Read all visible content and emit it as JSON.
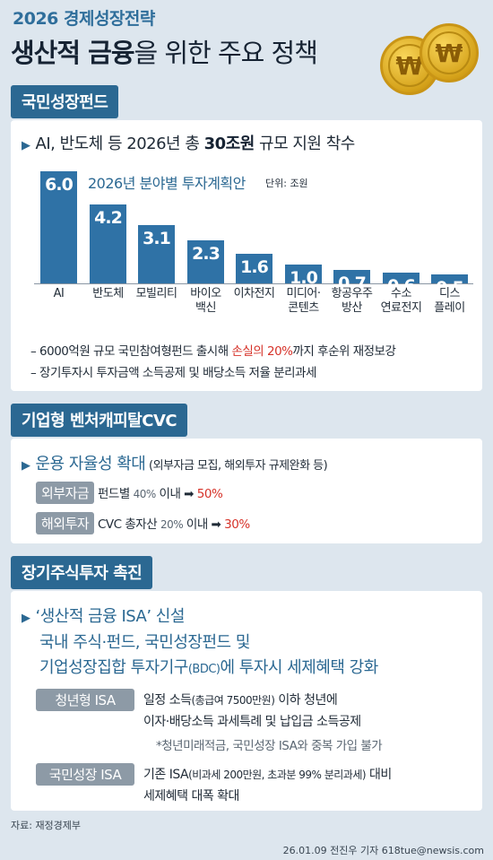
{
  "header": {
    "subtitle": "2026 경제성장전략",
    "title_bold": "생산적 금융",
    "title_rest": "을 위한 주요 정책"
  },
  "coins": {
    "symbol": "₩"
  },
  "section1": {
    "tag": "국민성장펀드",
    "headline_pre": "AI, 반도체 등 2026년 총 ",
    "headline_bold": "30조원",
    "headline_post": " 규모 지원 착수",
    "bullets": [
      {
        "pre": "– 6000억원 규모 국민참여형펀드 출시해 ",
        "red": "손실의 20%",
        "post": "까지 후순위 재정보강"
      },
      {
        "pre": "– 장기투자시 투자금액 소득공제 및 배당소득 저율 분리과세",
        "red": "",
        "post": ""
      }
    ]
  },
  "chart_data": {
    "type": "bar",
    "title": "2026년 분야별 투자계획안",
    "unit": "단위: 조원",
    "categories": [
      "AI",
      "반도체",
      "모빌리티",
      "바이오\n백신",
      "이차전지",
      "미디어·\n콘텐츠",
      "항공우주\n방산",
      "수소\n연료전지",
      "디스\n플레이"
    ],
    "values": [
      6.0,
      4.2,
      3.1,
      2.3,
      1.6,
      1.0,
      0.7,
      0.6,
      0.5
    ],
    "value_labels": [
      "6.0",
      "4.2",
      "3.1",
      "2.3",
      "1.6",
      "1.0",
      "0.7",
      "0.6",
      "0.5"
    ],
    "ylim": [
      0,
      6.0
    ],
    "bar_color": "#2f72a6"
  },
  "section2": {
    "tag": "기업형 벤처캐피탈CVC",
    "headline_main": "운용 자율성 확대",
    "headline_note": " (외부자금 모집, 해외투자 규제완화 등)",
    "rows": [
      {
        "chip": "외부자금",
        "text": "펀드별 ",
        "from": "40%",
        "mid": " 이내 ",
        "arrow": "➡",
        "to": "50%"
      },
      {
        "chip": "해외투자",
        "text": "CVC 총자산 ",
        "from": "20%",
        "mid": " 이내 ",
        "arrow": "➡",
        "to": "30%"
      }
    ]
  },
  "section3": {
    "tag": "장기주식투자 촉진",
    "headline": "‘생산적 금융 ISA’ 신설",
    "line2": "국내 주식·펀드, 국민성장펀드 및",
    "line3_pre": "기업성장집합 투자기구",
    "line3_small": "(BDC)",
    "line3_post": "에 투자시 세제혜택 강화",
    "items": [
      {
        "chip": "청년형 ISA",
        "l1_pre": "일정 소득",
        "l1_small": "(총급여 7500만원)",
        "l1_post": " 이하 청년에",
        "l2": "이자·배당소득 과세특례 및 납입금 소득공제",
        "note": "*청년미래적금, 국민성장 ISA와 중복 가입 불가"
      },
      {
        "chip": "국민성장 ISA",
        "l1_pre": "기존 ISA",
        "l1_small": "(비과세 200만원, 초과분 99% 분리과세)",
        "l1_post": " 대비",
        "l2": "세제혜택 대폭 확대"
      }
    ]
  },
  "footer": {
    "source": "자료: 재정경제부",
    "credit": "26.01.09 전진우 기자 618tue@newsis.com"
  },
  "colors": {
    "accent": "#2b6892",
    "highlight": "#d6332a",
    "background": "#dde6ee"
  }
}
